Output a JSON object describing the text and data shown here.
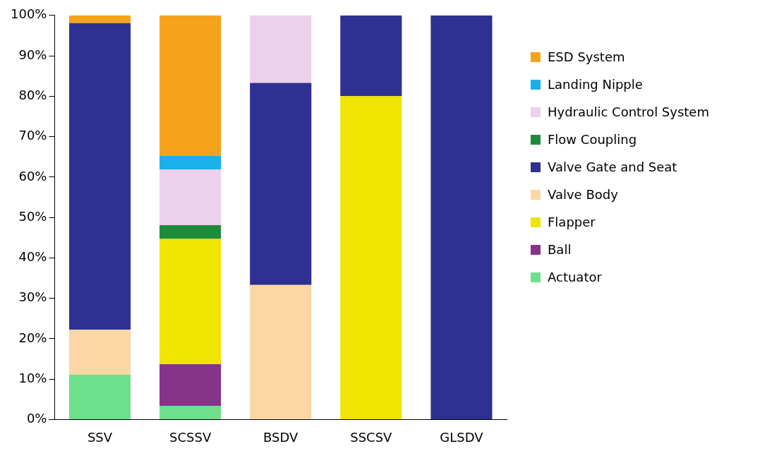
{
  "chart_data": {
    "type": "bar",
    "stacked": true,
    "categories": [
      "SSV",
      "SCSSV",
      "BSDV",
      "SSCSV",
      "GLSDV"
    ],
    "series": [
      {
        "name": "Actuator",
        "color": "#6ee08c",
        "values": [
          11.1,
          3.4,
          null,
          null,
          null
        ]
      },
      {
        "name": "Ball",
        "color": "#86338a",
        "values": [
          null,
          10.3,
          null,
          null,
          null
        ]
      },
      {
        "name": "Flapper",
        "color": "#f0e500",
        "values": [
          null,
          31.0,
          null,
          80,
          null
        ]
      },
      {
        "name": "Valve Body",
        "color": "#fcd6a4",
        "values": [
          11.1,
          null,
          33.3,
          null,
          null
        ]
      },
      {
        "name": "Valve Gate and Seat",
        "color": "#2e3192",
        "values": [
          75.9,
          null,
          50,
          20,
          100
        ]
      },
      {
        "name": "Flow Coupling",
        "color": "#1e8a3c",
        "values": [
          null,
          3.4,
          null,
          null,
          null
        ]
      },
      {
        "name": "Hydraulic Control System",
        "color": "#ecd0ec",
        "values": [
          null,
          13.8,
          16.7,
          null,
          null
        ]
      },
      {
        "name": "Landing Nipple",
        "color": "#1ab0ea",
        "values": [
          null,
          3.4,
          null,
          null,
          null
        ]
      },
      {
        "name": "ESD System",
        "color": "#f7a21b",
        "values": [
          1.9,
          34.7,
          null,
          null,
          null
        ]
      }
    ],
    "ylim": [
      0,
      100
    ],
    "yticks": [
      {
        "value": 0,
        "label": "0%"
      },
      {
        "value": 10,
        "label": "10%"
      },
      {
        "value": 20,
        "label": "20%"
      },
      {
        "value": 30,
        "label": "30%"
      },
      {
        "value": 40,
        "label": "40%"
      },
      {
        "value": 50,
        "label": "50%"
      },
      {
        "value": 60,
        "label": "60%"
      },
      {
        "value": 70,
        "label": "70%"
      },
      {
        "value": 80,
        "label": "80%"
      },
      {
        "value": 90,
        "label": "90%"
      },
      {
        "value": 100,
        "label": "100%"
      }
    ],
    "grid": false,
    "legend": "right"
  }
}
